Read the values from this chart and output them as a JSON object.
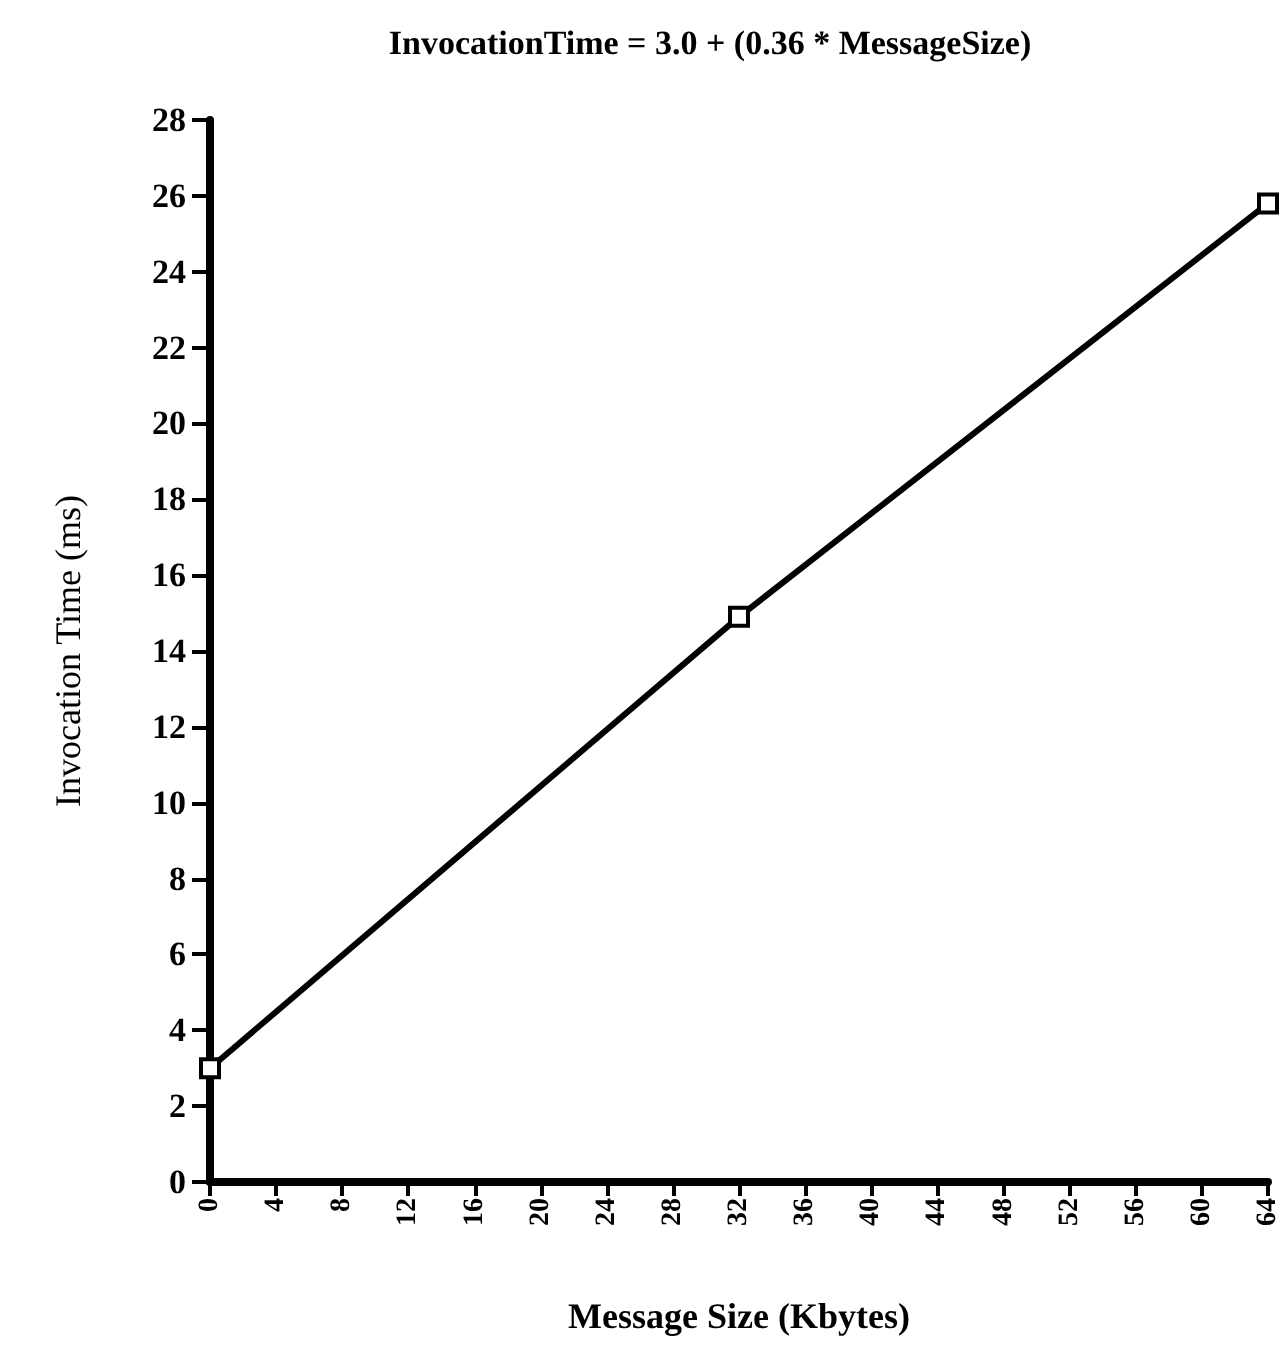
{
  "chart_data": {
    "type": "line",
    "title": "InvocationTime = 3.0 + (0.36 * MessageSize)",
    "xlabel": "Message Size (Kbytes)",
    "ylabel": "Invocation Time (ms)",
    "x": [
      0,
      32,
      64
    ],
    "series": [
      {
        "color": "#000000",
        "values": [
          3.0,
          14.9,
          25.8
        ]
      }
    ],
    "xlim": [
      0,
      64
    ],
    "xticks": [
      0,
      4,
      8,
      12,
      16,
      20,
      24,
      28,
      32,
      36,
      40,
      44,
      48,
      52,
      56,
      60,
      64
    ],
    "ylim": [
      0,
      28
    ],
    "yticks": [
      0,
      2,
      4,
      6,
      8,
      10,
      12,
      14,
      16,
      18,
      20,
      22,
      24,
      26,
      28
    ],
    "grid": false,
    "marker": "square",
    "line_style": "solid"
  }
}
